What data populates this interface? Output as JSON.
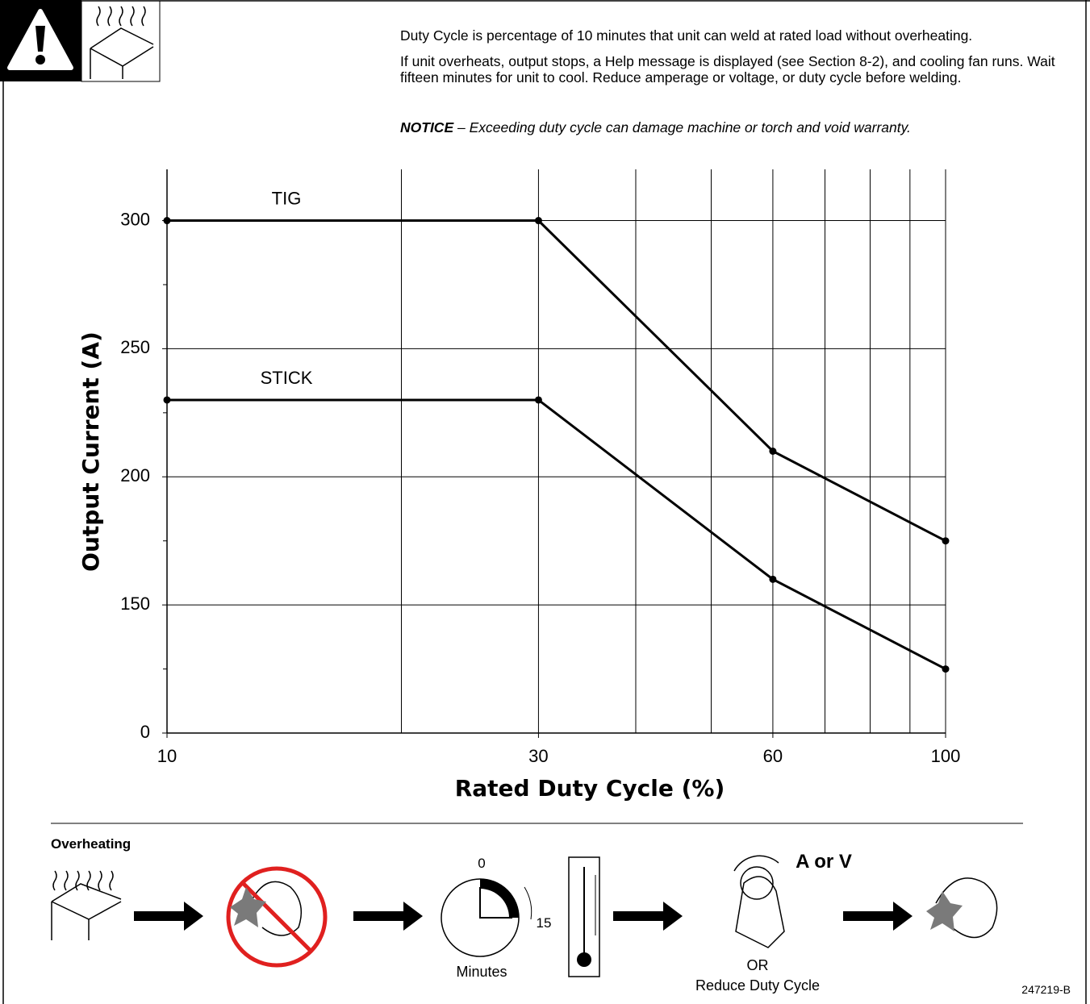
{
  "header": {
    "paragraphs": [
      "Duty Cycle is percentage of 10 minutes that unit can weld at rated load without overheating.",
      "If unit overheats, output stops, a Help message is displayed (see Section 8-2), and cooling fan runs. Wait fifteen minutes for unit to cool. Reduce amperage or voltage, or duty cycle before welding."
    ],
    "notice_label": "NOTICE",
    "notice_text": " – Exceeding duty cycle can damage machine or torch and void warranty."
  },
  "chart_data": {
    "type": "line",
    "x_label": "Rated Duty Cycle (%)",
    "y_label": "Output Current (A)",
    "x": [
      10,
      30,
      60,
      100
    ],
    "series": [
      {
        "name": "TIG",
        "color": "#000000",
        "values": [
          300,
          300,
          210,
          175
        ]
      },
      {
        "name": "STICK",
        "color": "#000000",
        "values": [
          230,
          230,
          160,
          125
        ]
      }
    ],
    "xlim": [
      10,
      100
    ],
    "xticks": [
      10,
      30,
      60,
      100
    ],
    "xgrid": [
      20,
      30,
      40,
      50,
      60,
      70,
      80,
      90
    ],
    "xlog": true,
    "ylim": [
      100,
      320
    ],
    "yticks": [
      {
        "value": 100,
        "label": "0"
      },
      150,
      200,
      250,
      300
    ],
    "yminorticks": [
      125,
      175,
      225,
      275
    ],
    "grid": true
  },
  "overheating": {
    "title": "Overheating",
    "clock_start": "0",
    "clock_end": "15",
    "clock_caption": "Minutes",
    "adjust_label": "A or V",
    "or_label": "OR",
    "reduce_label": "Reduce Duty Cycle",
    "doc_number": "247219-B"
  }
}
